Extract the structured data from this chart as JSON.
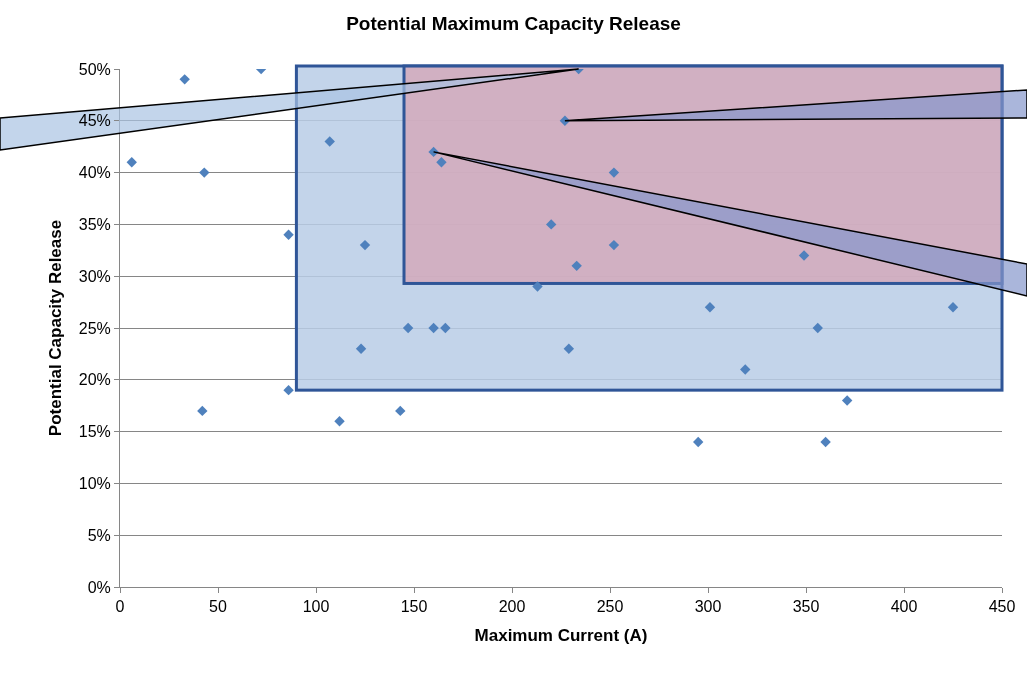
{
  "chart_data": {
    "type": "scatter",
    "title": "Potential Maximum Capacity Release",
    "xlabel": "Maximum Current (A)",
    "ylabel": "Potential Capacity Release",
    "xlim": [
      0,
      450
    ],
    "xticks": [
      0,
      50,
      100,
      150,
      200,
      250,
      300,
      350,
      400,
      450
    ],
    "ylim": [
      0,
      50
    ],
    "yticks": [
      {
        "value": 0,
        "label": "0%"
      },
      {
        "value": 5,
        "label": "5%"
      },
      {
        "value": 10,
        "label": "10%"
      },
      {
        "value": 15,
        "label": "15%"
      },
      {
        "value": 20,
        "label": "20%"
      },
      {
        "value": 25,
        "label": "25%"
      },
      {
        "value": 30,
        "label": "30%"
      },
      {
        "value": 35,
        "label": "35%"
      },
      {
        "value": 40,
        "label": "40%"
      },
      {
        "value": 45,
        "label": "45%"
      },
      {
        "value": 50,
        "label": "50%"
      }
    ],
    "grid": "y",
    "marker": "diamond",
    "series": [
      {
        "color": "#4f81bd",
        "x": [
          6,
          33,
          43,
          42,
          72,
          86,
          86,
          107,
          112,
          125,
          123,
          143,
          147,
          160,
          160,
          164,
          166,
          213,
          220,
          227,
          229,
          234,
          233,
          252,
          252,
          295,
          301,
          319,
          349,
          356,
          360,
          371,
          425
        ],
        "values": [
          41,
          49,
          40,
          17,
          50,
          34,
          19,
          43,
          16,
          33,
          23,
          17,
          25,
          42,
          25,
          41,
          25,
          29,
          35,
          45,
          23,
          50,
          31,
          40,
          33,
          14,
          27,
          21,
          32,
          25,
          14,
          18,
          27
        ]
      }
    ]
  }
}
